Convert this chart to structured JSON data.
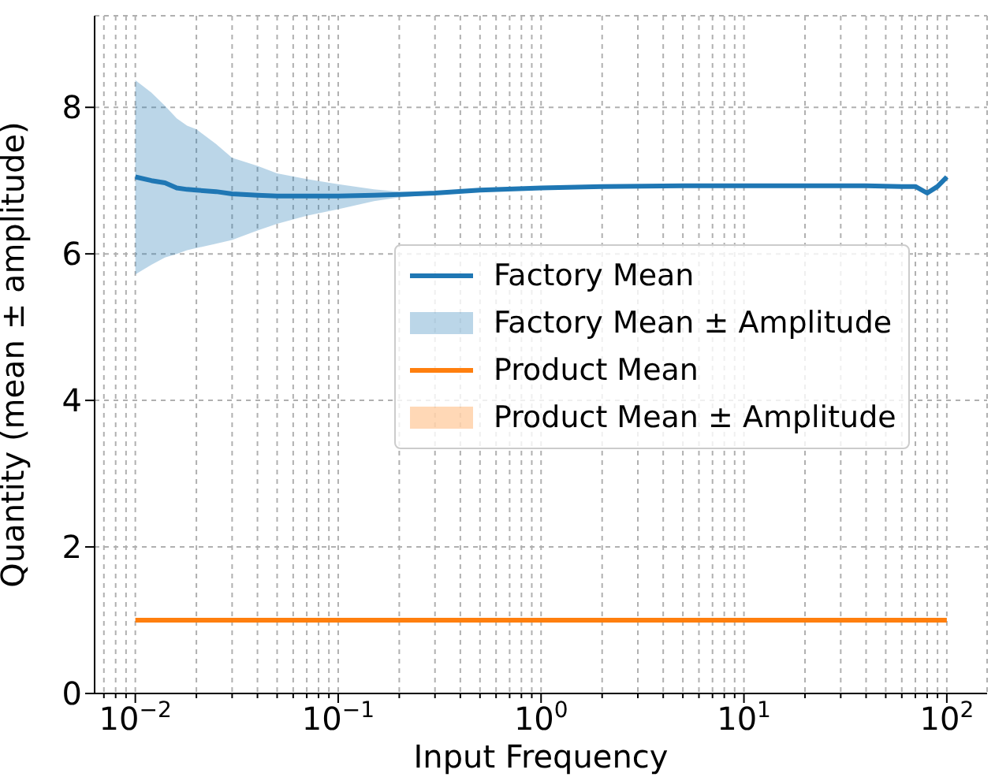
{
  "chart_data": {
    "type": "line",
    "xlabel": "Input Frequency",
    "ylabel": "Quantity (mean ± amplitude)",
    "log": "x",
    "grid": true,
    "legend": "center right",
    "xlim": [
      0.0063,
      158
    ],
    "ylim": [
      0,
      9.25
    ],
    "yticks": [
      0,
      2,
      4,
      6,
      8
    ],
    "xticks": [
      {
        "value": 0.007,
        "label": null
      },
      {
        "value": 0.008,
        "label": null
      },
      {
        "value": 0.009,
        "label": null
      },
      {
        "value": 0.01,
        "label": "10$^{−2}$"
      },
      {
        "value": 0.02,
        "label": null
      },
      {
        "value": 0.03,
        "label": null
      },
      {
        "value": 0.04,
        "label": null
      },
      {
        "value": 0.05,
        "label": null
      },
      {
        "value": 0.06,
        "label": null
      },
      {
        "value": 0.07,
        "label": null
      },
      {
        "value": 0.08,
        "label": null
      },
      {
        "value": 0.09,
        "label": null
      },
      {
        "value": 0.1,
        "label": "10$^{−1}$"
      },
      {
        "value": 0.2,
        "label": null
      },
      {
        "value": 0.3,
        "label": null
      },
      {
        "value": 0.4,
        "label": null
      },
      {
        "value": 0.5,
        "label": null
      },
      {
        "value": 0.6,
        "label": null
      },
      {
        "value": 0.7,
        "label": null
      },
      {
        "value": 0.8,
        "label": null
      },
      {
        "value": 0.9,
        "label": null
      },
      {
        "value": 1,
        "label": "10$^{0}$"
      },
      {
        "value": 2,
        "label": null
      },
      {
        "value": 3,
        "label": null
      },
      {
        "value": 4,
        "label": null
      },
      {
        "value": 5,
        "label": null
      },
      {
        "value": 6,
        "label": null
      },
      {
        "value": 7,
        "label": null
      },
      {
        "value": 8,
        "label": null
      },
      {
        "value": 9,
        "label": null
      },
      {
        "value": 10,
        "label": "10$^{1}$"
      },
      {
        "value": 20,
        "label": null
      },
      {
        "value": 30,
        "label": null
      },
      {
        "value": 40,
        "label": null
      },
      {
        "value": 50,
        "label": null
      },
      {
        "value": 60,
        "label": null
      },
      {
        "value": 70,
        "label": null
      },
      {
        "value": 80,
        "label": null
      },
      {
        "value": 90,
        "label": null
      },
      {
        "value": 100,
        "label": "10$^{2}$"
      }
    ],
    "annotations": [
      "Factory Mean ± Amplitude",
      "Product Mean ± Amplitude"
    ],
    "series": [
      {
        "name": "Factory Mean",
        "color": "#1f77b4",
        "x": [
          0.01,
          0.012,
          0.014,
          0.016,
          0.018,
          0.02,
          0.025,
          0.03,
          0.04,
          0.05,
          0.07,
          0.1,
          0.15,
          0.2,
          0.3,
          0.5,
          1,
          2,
          5,
          10,
          20,
          40,
          60,
          70,
          80,
          90,
          100
        ],
        "values": [
          7.05,
          7.0,
          6.97,
          6.9,
          6.88,
          6.87,
          6.85,
          6.82,
          6.8,
          6.79,
          6.79,
          6.79,
          6.8,
          6.81,
          6.83,
          6.87,
          6.9,
          6.92,
          6.93,
          6.93,
          6.93,
          6.93,
          6.92,
          6.92,
          6.83,
          6.92,
          7.05
        ],
        "lower": [
          5.72,
          5.85,
          5.95,
          6.0,
          6.05,
          6.08,
          6.14,
          6.19,
          6.32,
          6.41,
          6.52,
          6.61,
          6.72,
          6.77,
          6.81,
          6.86,
          6.89,
          6.91,
          6.92,
          6.92,
          6.92,
          6.92,
          6.91,
          6.91,
          6.82,
          6.91,
          7.04
        ],
        "upper": [
          8.37,
          8.2,
          8.02,
          7.85,
          7.75,
          7.7,
          7.5,
          7.31,
          7.2,
          7.1,
          7.02,
          6.95,
          6.88,
          6.85,
          6.85,
          6.88,
          6.91,
          6.93,
          6.94,
          6.94,
          6.94,
          6.94,
          6.93,
          6.93,
          6.84,
          6.93,
          7.06
        ]
      },
      {
        "name": "Product Mean",
        "color": "#ff7f0e",
        "x": [
          0.01,
          0.1,
          1,
          10,
          100
        ],
        "values": [
          1,
          1,
          1,
          1,
          1
        ]
      }
    ]
  }
}
